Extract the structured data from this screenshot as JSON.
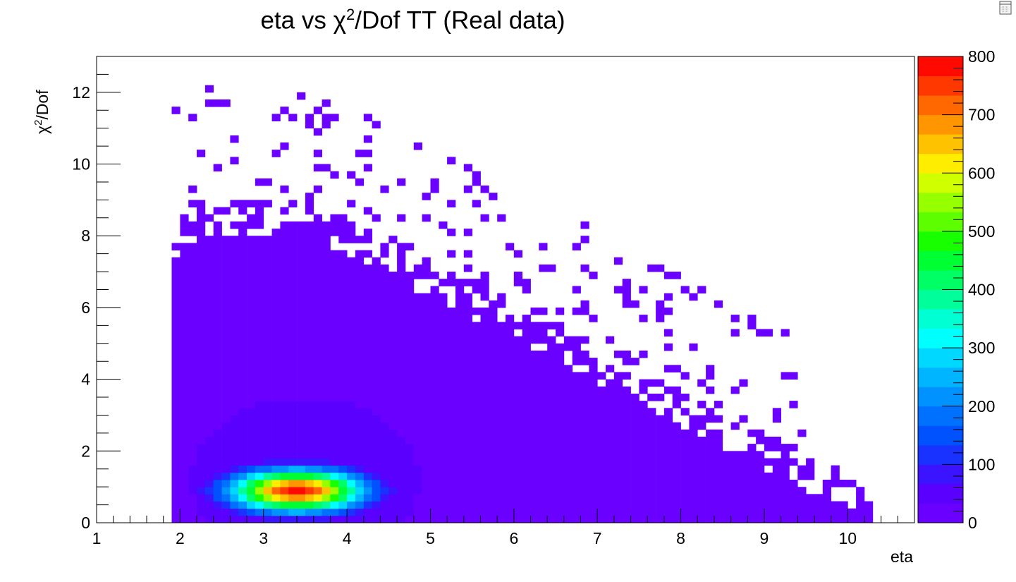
{
  "chart_data": {
    "type": "heatmap",
    "title_main": "eta vs χ",
    "title_sup": "2",
    "title_rest": "/Dof TT (Real data)",
    "xlabel": "eta",
    "ylabel_main": "χ",
    "ylabel_sup": "2",
    "ylabel_rest": "/Dof",
    "xlim": [
      1,
      10.8
    ],
    "ylim": [
      0,
      13
    ],
    "x_ticks": [
      "1",
      "2",
      "3",
      "4",
      "5",
      "6",
      "7",
      "8",
      "9",
      "10"
    ],
    "y_ticks": [
      "0",
      "2",
      "4",
      "6",
      "8",
      "10",
      "12"
    ],
    "z_ticks": [
      "0",
      "100",
      "200",
      "300",
      "400",
      "500",
      "600",
      "700",
      "800"
    ],
    "zlim": [
      0,
      800
    ],
    "palette": [
      "#6a00ff",
      "#5a00ff",
      "#3b13ff",
      "#1a32ff",
      "#0052ff",
      "#0070ff",
      "#0093ff",
      "#00b5ff",
      "#00d8ff",
      "#00ffff",
      "#00ffd2",
      "#00ff9a",
      "#00ff64",
      "#00ff32",
      "#18ff00",
      "#5dff00",
      "#96ff00",
      "#d0ff00",
      "#ffed00",
      "#ffc200",
      "#ff9500",
      "#ff6700",
      "#ff3800",
      "#ff0a00"
    ],
    "core": {
      "x_center": 3.4,
      "y_center": 0.9,
      "peak": 790
    }
  },
  "toolbar": {
    "icon": "canvas-editor-icon"
  }
}
